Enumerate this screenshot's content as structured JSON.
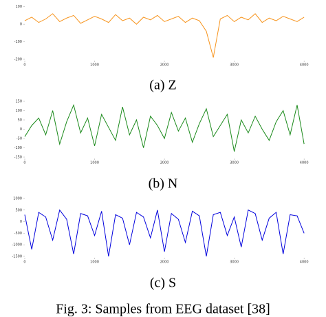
{
  "chart_data": [
    {
      "type": "line",
      "caption": "(a) Z",
      "color": "#f7941d",
      "x": [
        0,
        100,
        200,
        300,
        400,
        500,
        600,
        700,
        800,
        900,
        1000,
        1100,
        1200,
        1300,
        1400,
        1500,
        1600,
        1700,
        1800,
        1900,
        2000,
        2100,
        2200,
        2300,
        2400,
        2500,
        2600,
        2700,
        2800,
        2900,
        3000,
        3100,
        3200,
        3300,
        3400,
        3500,
        3600,
        3700,
        3800,
        3900,
        4000
      ],
      "values": [
        20,
        40,
        10,
        30,
        60,
        15,
        35,
        50,
        5,
        25,
        45,
        30,
        10,
        55,
        20,
        35,
        0,
        40,
        25,
        50,
        15,
        30,
        45,
        10,
        35,
        20,
        -40,
        -190,
        30,
        50,
        15,
        40,
        25,
        60,
        10,
        35,
        20,
        45,
        30,
        15,
        40
      ],
      "xlim": [
        0,
        4097
      ],
      "xticks": [
        0,
        1000,
        2000,
        3000,
        4000
      ],
      "ylim": [
        -200,
        150
      ],
      "yticks": [
        -200,
        -100,
        0,
        100
      ]
    },
    {
      "type": "line",
      "caption": "(b) N",
      "color": "#1b8a1b",
      "x": [
        0,
        100,
        200,
        300,
        400,
        500,
        600,
        700,
        800,
        900,
        1000,
        1100,
        1200,
        1300,
        1400,
        1500,
        1600,
        1700,
        1800,
        1900,
        2000,
        2100,
        2200,
        2300,
        2400,
        2500,
        2600,
        2700,
        2800,
        2900,
        3000,
        3100,
        3200,
        3300,
        3400,
        3500,
        3600,
        3700,
        3800,
        3900,
        4000
      ],
      "values": [
        -40,
        20,
        60,
        -30,
        100,
        -80,
        40,
        130,
        -20,
        60,
        -90,
        80,
        10,
        -60,
        120,
        -30,
        50,
        -100,
        70,
        20,
        -50,
        90,
        -10,
        60,
        -70,
        30,
        110,
        -40,
        20,
        80,
        -120,
        50,
        -20,
        70,
        0,
        -60,
        40,
        100,
        -30,
        130,
        -80
      ],
      "xlim": [
        0,
        4097
      ],
      "xticks": [
        0,
        1000,
        2000,
        3000,
        4000
      ],
      "ylim": [
        -150,
        150
      ],
      "yticks": [
        -150,
        -100,
        -50,
        0,
        50,
        100,
        150
      ]
    },
    {
      "type": "line",
      "caption": "(c) S",
      "color": "#0000dd",
      "x": [
        0,
        100,
        200,
        300,
        400,
        500,
        600,
        700,
        800,
        900,
        1000,
        1100,
        1200,
        1300,
        1400,
        1500,
        1600,
        1700,
        1800,
        1900,
        2000,
        2100,
        2200,
        2300,
        2400,
        2500,
        2600,
        2700,
        2800,
        2900,
        3000,
        3100,
        3200,
        3300,
        3400,
        3500,
        3600,
        3700,
        3800,
        3900,
        4000
      ],
      "values": [
        300,
        -1200,
        400,
        200,
        -800,
        500,
        100,
        -1400,
        350,
        250,
        -600,
        450,
        -1500,
        300,
        150,
        -1000,
        400,
        200,
        -700,
        500,
        -1300,
        350,
        100,
        -900,
        450,
        250,
        -1500,
        300,
        400,
        -600,
        200,
        -1100,
        500,
        350,
        -800,
        150,
        400,
        -1400,
        300,
        250,
        -500
      ],
      "xlim": [
        0,
        4097
      ],
      "xticks": [
        0,
        1000,
        2000,
        3000,
        4000
      ],
      "ylim": [
        -1500,
        1000
      ],
      "yticks": [
        -1500,
        -1000,
        -500,
        0,
        500,
        1000
      ]
    }
  ],
  "figure_caption": "Fig. 3: Samples from EEG dataset [38]"
}
